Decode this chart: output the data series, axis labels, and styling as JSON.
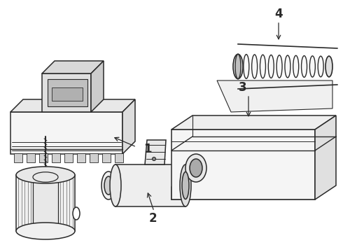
{
  "background_color": "#ffffff",
  "line_color": "#2a2a2a",
  "line_width": 1.1,
  "figsize": [
    4.9,
    3.6
  ],
  "dpi": 100,
  "label_fontsize": 12
}
